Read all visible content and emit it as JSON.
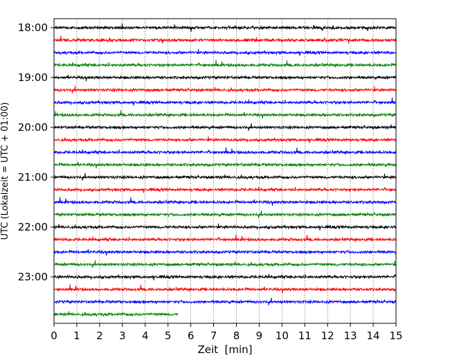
{
  "chart_data": {
    "type": "line",
    "title": "",
    "xlabel": "Zeit  [min]",
    "ylabel": "UTC (Lokalzeit = UTC + 01:00)",
    "xlim": [
      0,
      15
    ],
    "x_ticks": [
      0,
      1,
      2,
      3,
      4,
      5,
      6,
      7,
      8,
      9,
      10,
      11,
      12,
      13,
      14,
      15
    ],
    "x_tick_labels": [
      "0",
      "1",
      "2",
      "3",
      "4",
      "5",
      "6",
      "7",
      "8",
      "9",
      "10",
      "11",
      "12",
      "13",
      "14",
      "15"
    ],
    "y_tick_labels": [
      "18:00",
      "19:00",
      "20:00",
      "21:00",
      "22:00",
      "23:00"
    ],
    "y_tick_rows": [
      0,
      4,
      8,
      12,
      16,
      20
    ],
    "vertical_grid": "dotted at each minute",
    "trace_colors": [
      "#000000",
      "#ff0000",
      "#0000ff",
      "#008000"
    ],
    "traces": [
      {
        "start": "18:00",
        "color": "#000000",
        "x_end": 15
      },
      {
        "start": "18:15",
        "color": "#ff0000",
        "x_end": 15
      },
      {
        "start": "18:30",
        "color": "#0000ff",
        "x_end": 15
      },
      {
        "start": "18:45",
        "color": "#008000",
        "x_end": 15
      },
      {
        "start": "19:00",
        "color": "#000000",
        "x_end": 15
      },
      {
        "start": "19:15",
        "color": "#ff0000",
        "x_end": 15
      },
      {
        "start": "19:30",
        "color": "#0000ff",
        "x_end": 15
      },
      {
        "start": "19:45",
        "color": "#008000",
        "x_end": 15
      },
      {
        "start": "20:00",
        "color": "#000000",
        "x_end": 15
      },
      {
        "start": "20:15",
        "color": "#ff0000",
        "x_end": 15
      },
      {
        "start": "20:30",
        "color": "#0000ff",
        "x_end": 15
      },
      {
        "start": "20:45",
        "color": "#008000",
        "x_end": 15
      },
      {
        "start": "21:00",
        "color": "#000000",
        "x_end": 15
      },
      {
        "start": "21:15",
        "color": "#ff0000",
        "x_end": 15
      },
      {
        "start": "21:30",
        "color": "#0000ff",
        "x_end": 15
      },
      {
        "start": "21:45",
        "color": "#008000",
        "x_end": 15
      },
      {
        "start": "22:00",
        "color": "#000000",
        "x_end": 15
      },
      {
        "start": "22:15",
        "color": "#ff0000",
        "x_end": 15
      },
      {
        "start": "22:30",
        "color": "#0000ff",
        "x_end": 15
      },
      {
        "start": "22:45",
        "color": "#008000",
        "x_end": 15
      },
      {
        "start": "23:00",
        "color": "#000000",
        "x_end": 15
      },
      {
        "start": "23:15",
        "color": "#ff0000",
        "x_end": 15
      },
      {
        "start": "23:30",
        "color": "#0000ff",
        "x_end": 15
      },
      {
        "start": "23:45",
        "color": "#008000",
        "x_end": 5.45
      }
    ]
  }
}
